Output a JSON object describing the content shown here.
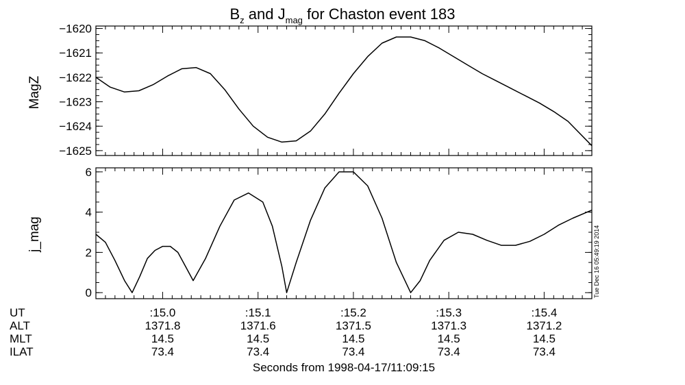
{
  "title": {
    "b": "B",
    "b_sub": "z",
    "and": " and ",
    "j": "J",
    "j_sub": "mag",
    "rest": " for Chaston event 183"
  },
  "timestamp": "Tue Dec 16 05:49:19 2014",
  "footer": {
    "row_labels": [
      "UT",
      "ALT",
      "MLT",
      "ILAT"
    ],
    "columns": [
      {
        "t": 15.0,
        "UT": ":15.0",
        "ALT": "1371.8",
        "MLT": "14.5",
        "ILAT": "73.4"
      },
      {
        "t": 15.1,
        "UT": ":15.1",
        "ALT": "1371.6",
        "MLT": "14.5",
        "ILAT": "73.4"
      },
      {
        "t": 15.2,
        "UT": ":15.2",
        "ALT": "1371.5",
        "MLT": "14.5",
        "ILAT": "73.4"
      },
      {
        "t": 15.3,
        "UT": ":15.3",
        "ALT": "1371.3",
        "MLT": "14.5",
        "ILAT": "73.4"
      },
      {
        "t": 15.4,
        "UT": ":15.4",
        "ALT": "1371.2",
        "MLT": "14.5",
        "ILAT": "73.4"
      }
    ],
    "xlabel": "Seconds from 1998-04-17/11:09:15"
  },
  "chart_data": [
    {
      "type": "line",
      "ylabel": "MagZ",
      "xlim": [
        14.93,
        15.45
      ],
      "ylim": [
        -1625.2,
        -1619.9
      ],
      "yticks": [
        -1620,
        -1621,
        -1622,
        -1623,
        -1624,
        -1625
      ],
      "ytick_labels": [
        "−1620",
        "−1621",
        "−1622",
        "−1623",
        "−1624",
        "−1625"
      ],
      "xticks": [
        15.0,
        15.1,
        15.2,
        15.3,
        15.4
      ],
      "series": [
        {
          "x": [
            14.93,
            14.945,
            14.96,
            14.975,
            14.99,
            15.005,
            15.02,
            15.035,
            15.05,
            15.065,
            15.08,
            15.095,
            15.11,
            15.125,
            15.14,
            15.155,
            15.17,
            15.185,
            15.2,
            15.215,
            15.23,
            15.245,
            15.26,
            15.275,
            15.29,
            15.305,
            15.32,
            15.335,
            15.35,
            15.365,
            15.38,
            15.395,
            15.41,
            15.425,
            15.45
          ],
          "y": [
            -1622.0,
            -1622.4,
            -1622.6,
            -1622.55,
            -1622.3,
            -1621.95,
            -1621.65,
            -1621.6,
            -1621.85,
            -1622.5,
            -1623.3,
            -1624.0,
            -1624.45,
            -1624.65,
            -1624.6,
            -1624.2,
            -1623.5,
            -1622.65,
            -1621.85,
            -1621.15,
            -1620.6,
            -1620.35,
            -1620.35,
            -1620.5,
            -1620.8,
            -1621.15,
            -1621.5,
            -1621.85,
            -1622.15,
            -1622.45,
            -1622.75,
            -1623.05,
            -1623.4,
            -1623.8,
            -1624.8
          ]
        }
      ]
    },
    {
      "type": "line",
      "ylabel": "j_mag",
      "xlim": [
        14.93,
        15.45
      ],
      "ylim": [
        -0.3,
        6.2
      ],
      "yticks": [
        0,
        2,
        4,
        6
      ],
      "xticks": [
        15.0,
        15.1,
        15.2,
        15.3,
        15.4
      ],
      "series": [
        {
          "x": [
            14.93,
            14.94,
            14.95,
            14.96,
            14.968,
            14.976,
            14.984,
            14.992,
            15.0,
            15.008,
            15.016,
            15.024,
            15.032,
            15.045,
            15.06,
            15.075,
            15.09,
            15.105,
            15.115,
            15.125,
            15.13,
            15.14,
            15.155,
            15.17,
            15.185,
            15.2,
            15.215,
            15.23,
            15.245,
            15.26,
            15.27,
            15.28,
            15.295,
            15.31,
            15.325,
            15.34,
            15.355,
            15.37,
            15.385,
            15.4,
            15.415,
            15.43,
            15.45
          ],
          "y": [
            2.9,
            2.5,
            1.6,
            0.6,
            0.0,
            0.8,
            1.7,
            2.1,
            2.3,
            2.3,
            2.0,
            1.3,
            0.6,
            1.7,
            3.3,
            4.6,
            4.95,
            4.5,
            3.3,
            1.3,
            0.0,
            1.5,
            3.6,
            5.2,
            6.0,
            6.0,
            5.3,
            3.7,
            1.5,
            0.0,
            0.6,
            1.6,
            2.6,
            3.0,
            2.9,
            2.6,
            2.35,
            2.35,
            2.55,
            2.9,
            3.35,
            3.7,
            4.1
          ]
        }
      ]
    }
  ]
}
